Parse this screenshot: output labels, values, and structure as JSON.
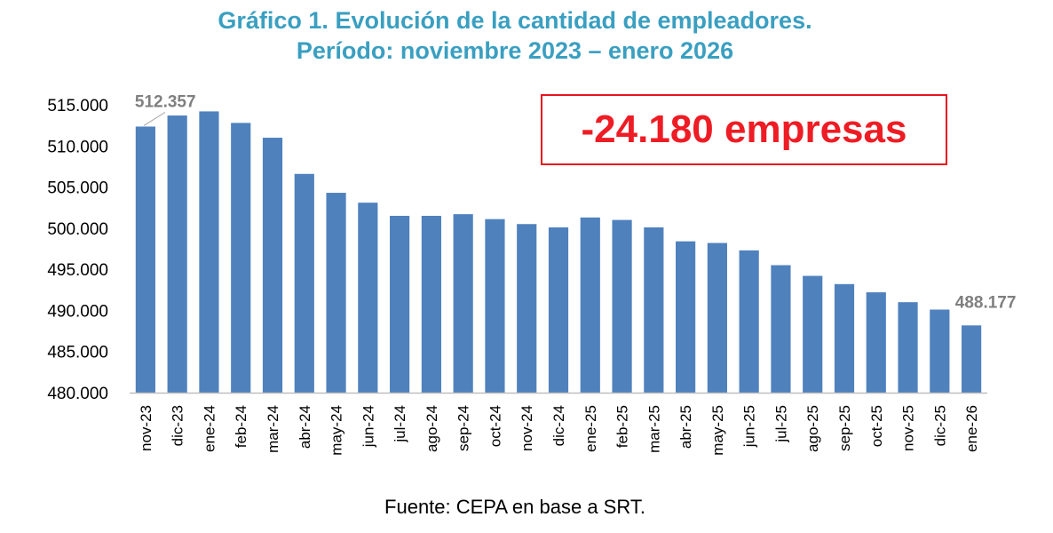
{
  "title_line1": "Gráfico 1. Evolución de la cantidad de empleadores.",
  "title_line2": "Período: noviembre 2023 – enero 2026",
  "callout": "-24.180 empresas",
  "source": "Fuente: CEPA en base a SRT.",
  "chart_data": {
    "type": "bar",
    "categories": [
      "nov-23",
      "dic-23",
      "ene-24",
      "feb-24",
      "mar-24",
      "abr-24",
      "may-24",
      "jun-24",
      "jul-24",
      "ago-24",
      "sep-24",
      "oct-24",
      "nov-24",
      "dic-24",
      "ene-25",
      "feb-25",
      "mar-25",
      "abr-25",
      "may-25",
      "jun-25",
      "jul-25",
      "ago-25",
      "sep-25",
      "oct-25",
      "nov-25",
      "dic-25",
      "ene-26"
    ],
    "values": [
      512357,
      513700,
      514200,
      512800,
      511000,
      506600,
      504300,
      503100,
      501500,
      501500,
      501700,
      501100,
      500500,
      500100,
      501300,
      501000,
      500100,
      498400,
      498200,
      497300,
      495500,
      494200,
      493200,
      492200,
      491000,
      490100,
      488177
    ],
    "data_labels": [
      {
        "index": 0,
        "text": "512.357"
      },
      {
        "index": 26,
        "text": "488.177"
      }
    ],
    "yticks": [
      "480.000",
      "485.000",
      "490.000",
      "495.000",
      "500.000",
      "505.000",
      "510.000",
      "515.000"
    ],
    "ylim": [
      480000,
      515000
    ],
    "bar_color": "#4f81bd",
    "label_color": "#7f7f7f",
    "grid": false,
    "legend": false
  }
}
